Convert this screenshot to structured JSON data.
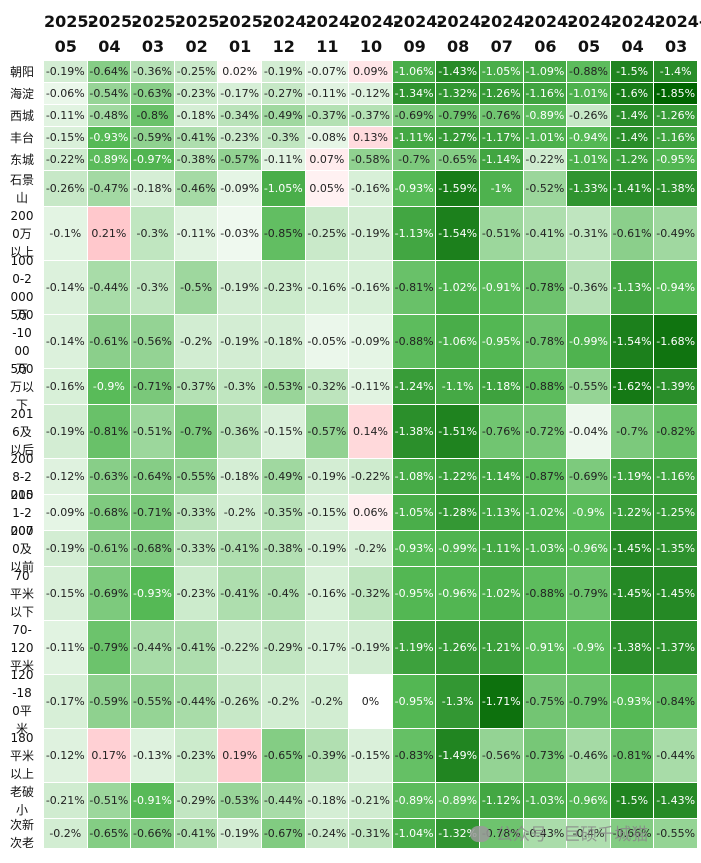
{
  "chart_data": {
    "type": "heatmap",
    "columns_top": [
      "2025-",
      "2025-",
      "2025-",
      "2025-",
      "2025-",
      "2024-",
      "2024-",
      "2024-",
      "2024-",
      "2024-",
      "2024-",
      "2024-",
      "2024-",
      "2024-",
      "2024-"
    ],
    "columns_bottom": [
      "05",
      "04",
      "03",
      "02",
      "01",
      "12",
      "11",
      "10",
      "09",
      "08",
      "07",
      "06",
      "05",
      "04",
      "03"
    ],
    "rows": [
      {
        "label": "朝阳",
        "values": [
          -0.19,
          -0.64,
          -0.36,
          -0.25,
          0.02,
          -0.19,
          -0.07,
          0.09,
          -1.06,
          -1.43,
          -1.05,
          -1.09,
          -0.88,
          -1.5,
          -1.4
        ]
      },
      {
        "label": "海淀",
        "values": [
          -0.06,
          -0.54,
          -0.63,
          -0.23,
          -0.17,
          -0.27,
          -0.11,
          -0.12,
          -1.34,
          -1.32,
          -1.26,
          -1.16,
          -1.01,
          -1.6,
          -1.85
        ]
      },
      {
        "label": "西城",
        "values": [
          -0.11,
          -0.48,
          -0.8,
          -0.18,
          -0.34,
          -0.49,
          -0.37,
          -0.37,
          -0.69,
          -0.79,
          -0.76,
          -0.89,
          -0.26,
          -1.4,
          -1.26
        ]
      },
      {
        "label": "丰台",
        "values": [
          -0.15,
          -0.93,
          -0.59,
          -0.41,
          -0.23,
          -0.3,
          -0.08,
          0.13,
          -1.11,
          -1.27,
          -1.17,
          -1.01,
          -0.94,
          -1.4,
          -1.16
        ]
      },
      {
        "label": "东城",
        "values": [
          -0.22,
          -0.89,
          -0.97,
          -0.38,
          -0.57,
          -0.11,
          0.07,
          -0.58,
          -0.7,
          -0.65,
          -1.14,
          -0.22,
          -1.01,
          -1.2,
          -0.95
        ]
      },
      {
        "label": "石景山",
        "values": [
          -0.26,
          -0.47,
          -0.18,
          -0.46,
          -0.09,
          -1.05,
          0.05,
          -0.16,
          -0.93,
          -1.59,
          -1,
          -0.52,
          -1.33,
          -1.41,
          -1.38
        ]
      },
      {
        "label": "2000万以上",
        "values": [
          -0.1,
          0.21,
          -0.3,
          -0.11,
          -0.03,
          -0.85,
          -0.25,
          -0.19,
          -1.13,
          -1.54,
          -0.51,
          -0.41,
          -0.31,
          -0.61,
          -0.49
        ]
      },
      {
        "label": "1000-2000万",
        "values": [
          -0.14,
          -0.44,
          -0.3,
          -0.5,
          -0.19,
          -0.23,
          -0.16,
          -0.16,
          -0.81,
          -1.02,
          -0.91,
          -0.78,
          -0.36,
          -1.13,
          -0.94
        ]
      },
      {
        "label": "500-1000万",
        "values": [
          -0.14,
          -0.61,
          -0.56,
          -0.2,
          -0.19,
          -0.18,
          -0.05,
          -0.09,
          -0.88,
          -1.06,
          -0.95,
          -0.78,
          -0.99,
          -1.54,
          -1.68
        ]
      },
      {
        "label": "500万以下",
        "values": [
          -0.16,
          -0.9,
          -0.71,
          -0.37,
          -0.3,
          -0.53,
          -0.32,
          -0.11,
          -1.24,
          -1.1,
          -1.18,
          -0.88,
          -0.55,
          -1.62,
          -1.39
        ]
      },
      {
        "label": "2016及以后",
        "values": [
          -0.19,
          -0.81,
          -0.51,
          -0.7,
          -0.36,
          -0.15,
          -0.57,
          0.14,
          -1.38,
          -1.51,
          -0.76,
          -0.72,
          -0.04,
          -0.7,
          -0.82
        ]
      },
      {
        "label": "2008-2015",
        "values": [
          -0.12,
          -0.63,
          -0.64,
          -0.55,
          -0.18,
          -0.49,
          -0.19,
          -0.22,
          -1.08,
          -1.22,
          -1.14,
          -0.87,
          -0.69,
          -1.19,
          -1.16
        ]
      },
      {
        "label": "2001-2007",
        "values": [
          -0.09,
          -0.68,
          -0.71,
          -0.33,
          -0.2,
          -0.35,
          -0.15,
          0.06,
          -1.05,
          -1.28,
          -1.13,
          -1.02,
          -0.9,
          -1.22,
          -1.25
        ]
      },
      {
        "label": "2000及以前",
        "values": [
          -0.19,
          -0.61,
          -0.68,
          -0.33,
          -0.41,
          -0.38,
          -0.19,
          -0.2,
          -0.93,
          -0.99,
          -1.11,
          -1.03,
          -0.96,
          -1.45,
          -1.35
        ]
      },
      {
        "label": "70平米以下",
        "values": [
          -0.15,
          -0.69,
          -0.93,
          -0.23,
          -0.41,
          -0.4,
          -0.16,
          -0.32,
          -0.95,
          -0.96,
          -1.02,
          -0.88,
          -0.79,
          -1.45,
          -1.45
        ]
      },
      {
        "label": "70-120平米",
        "values": [
          -0.11,
          -0.79,
          -0.44,
          -0.41,
          -0.22,
          -0.29,
          -0.17,
          -0.19,
          -1.19,
          -1.26,
          -1.21,
          -0.91,
          -0.9,
          -1.38,
          -1.37
        ]
      },
      {
        "label": "120-180平米",
        "values": [
          -0.17,
          -0.59,
          -0.55,
          -0.44,
          -0.26,
          -0.2,
          -0.2,
          0,
          -0.95,
          -1.3,
          -1.71,
          -0.75,
          -0.79,
          -0.93,
          -0.84
        ]
      },
      {
        "label": "180平米以上",
        "values": [
          -0.12,
          0.17,
          -0.13,
          -0.23,
          0.19,
          -0.65,
          -0.39,
          -0.15,
          -0.83,
          -1.49,
          -0.56,
          -0.73,
          -0.46,
          -0.81,
          -0.44
        ]
      },
      {
        "label": "老破小",
        "values": [
          -0.21,
          -0.51,
          -0.91,
          -0.29,
          -0.53,
          -0.44,
          -0.18,
          -0.21,
          -0.89,
          -0.89,
          -1.12,
          -1.03,
          -0.96,
          -1.5,
          -1.43
        ]
      },
      {
        "label": "次新次老",
        "values": [
          -0.2,
          -0.65,
          -0.66,
          -0.41,
          -0.19,
          -0.67,
          -0.24,
          -0.31,
          -1.04,
          -1.32,
          -0.78,
          -0.43,
          -0.4,
          -0.66,
          -0.55
        ]
      }
    ],
    "value_suffix": "%",
    "colors": {
      "negative_max": "#006400",
      "negative_min": "#ffffff",
      "positive": "#ffc8cc",
      "text_dark": "#222222",
      "text_light": "#ffffff"
    }
  },
  "watermark": {
    "text": "公众号 · 巨硕千城猫"
  }
}
